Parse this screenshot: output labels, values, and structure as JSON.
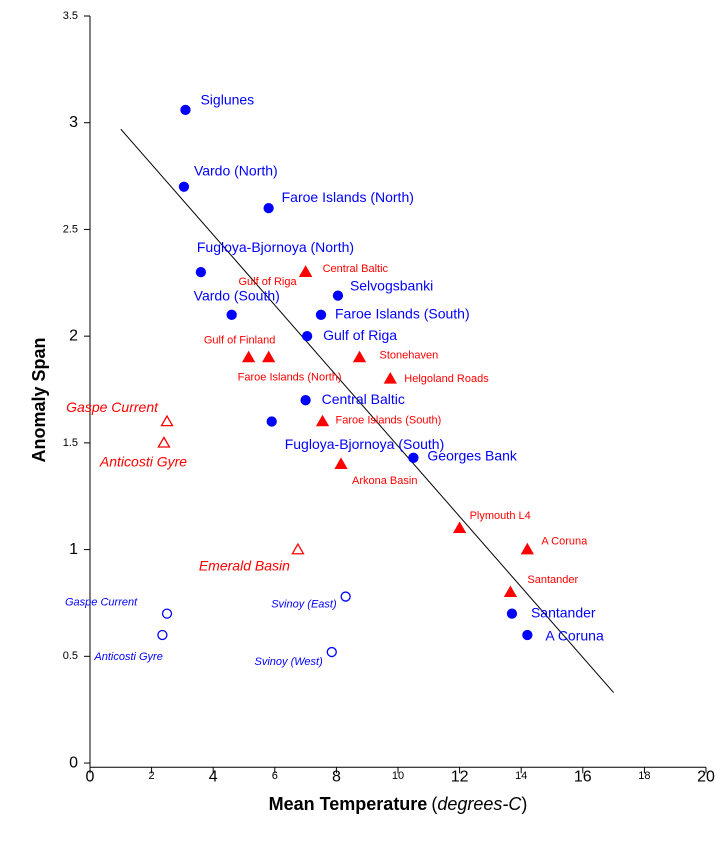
{
  "chart_data": {
    "type": "scatter",
    "xlabel_parts": [
      "Mean Temperature",
      "(",
      "degrees-C",
      ")"
    ],
    "ylabel": "Anomaly Span",
    "xlim": [
      0,
      20
    ],
    "ylim": [
      -0.02,
      3.5
    ],
    "xticks": [
      0,
      2,
      4,
      6,
      8,
      10,
      12,
      14,
      16,
      18,
      20
    ],
    "yticks": [
      0,
      0.5,
      1,
      1.5,
      2,
      2.5,
      3,
      3.5
    ],
    "series": [
      {
        "color": "#0000ff",
        "marker": "circle",
        "filled": true,
        "labels": [
          "Siglunes",
          "Vardo (North)",
          "Faroe Islands (North)",
          "Fugloya-Bjornoya (North)",
          "Vardo (South)",
          "Selvogsbanki",
          "Faroe Islands (South)",
          "Gulf of Riga",
          "Central Baltic",
          "Fugloya-Bjornoya (South)",
          "Georges Bank",
          "Santander",
          "A Coruna"
        ],
        "x": [
          3.1,
          3.05,
          5.8,
          3.6,
          4.6,
          8.05,
          7.5,
          7.05,
          7.0,
          5.9,
          10.5,
          13.7,
          14.2
        ],
        "values": [
          3.06,
          2.7,
          2.6,
          2.3,
          2.1,
          2.19,
          2.1,
          2.0,
          1.7,
          1.6,
          1.43,
          0.7,
          0.6
        ]
      },
      {
        "color": "#ff0000",
        "marker": "triangle",
        "filled": true,
        "labels": [
          "Central Baltic",
          "Gulf of Riga",
          "Gulf of Finland",
          "Faroe Islands (North)",
          "Stonehaven",
          "Helgoland Roads",
          "Faroe Islands (South)",
          "Arkona Basin",
          "Plymouth L4",
          "A Coruna",
          "Santander"
        ],
        "x": [
          7.0,
          7.0,
          5.15,
          5.8,
          8.75,
          9.75,
          7.55,
          8.15,
          12.0,
          14.2,
          13.65
        ],
        "values": [
          2.3,
          2.3,
          1.9,
          1.9,
          1.9,
          1.8,
          1.6,
          1.4,
          1.1,
          1.0,
          0.8
        ]
      },
      {
        "color": "#ff0000",
        "marker": "triangle",
        "filled": false,
        "labels": [
          "Gaspe Current",
          "Anticosti Gyre",
          "Emerald Basin"
        ],
        "x": [
          2.5,
          2.4,
          6.75
        ],
        "values": [
          1.6,
          1.5,
          1.0
        ]
      },
      {
        "color": "#0000ff",
        "marker": "circle",
        "filled": false,
        "labels": [
          "Gaspe Current",
          "Anticosti Gyre",
          "Svinoy (East)",
          "Svinoy (West)"
        ],
        "x": [
          2.5,
          2.35,
          8.3,
          7.85
        ],
        "values": [
          0.7,
          0.6,
          0.78,
          0.52
        ]
      }
    ],
    "trend_line": {
      "color": "#000000",
      "x": [
        1,
        17
      ],
      "values": [
        2.97,
        0.33
      ]
    }
  }
}
